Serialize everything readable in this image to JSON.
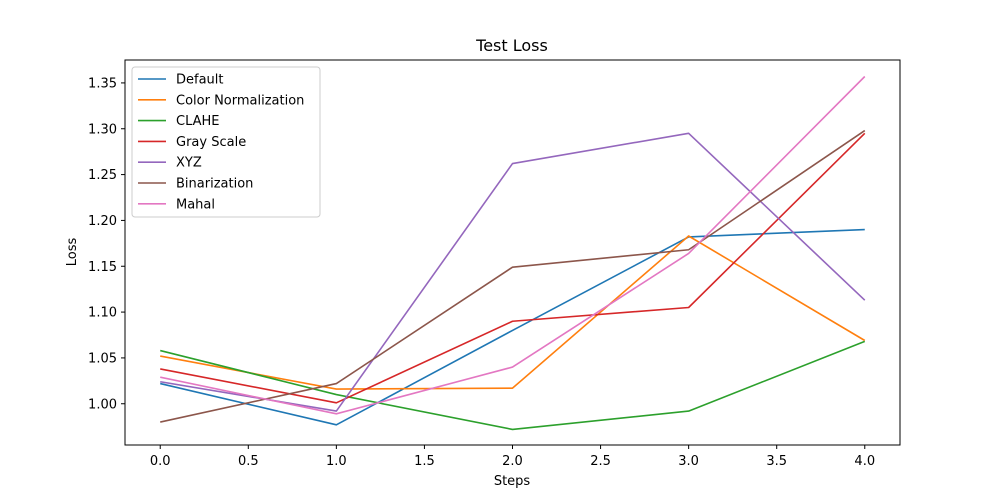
{
  "chart_data": {
    "type": "line",
    "title": "Test Loss",
    "xlabel": "Steps",
    "ylabel": "Loss",
    "x": [
      0,
      1,
      2,
      3,
      4
    ],
    "xlim": [
      -0.2,
      4.2
    ],
    "ylim": [
      0.955,
      1.375
    ],
    "xticks": [
      "0.0",
      "0.5",
      "1.0",
      "1.5",
      "2.0",
      "2.5",
      "3.0",
      "3.5",
      "4.0"
    ],
    "yticks": [
      "1.00",
      "1.05",
      "1.10",
      "1.15",
      "1.20",
      "1.25",
      "1.30",
      "1.35"
    ],
    "grid": false,
    "legend_position": "top-left",
    "series": [
      {
        "name": "Default",
        "color": "#1f77b4",
        "values": [
          1.022,
          0.977,
          1.08,
          1.182,
          1.19
        ]
      },
      {
        "name": "Color Normalization",
        "color": "#ff7f0e",
        "values": [
          1.052,
          1.016,
          1.017,
          1.183,
          1.069
        ]
      },
      {
        "name": "CLAHE",
        "color": "#2ca02c",
        "values": [
          1.058,
          1.01,
          0.972,
          0.992,
          1.068
        ]
      },
      {
        "name": "Gray Scale",
        "color": "#d62728",
        "values": [
          1.038,
          1.001,
          1.09,
          1.105,
          1.295
        ]
      },
      {
        "name": "XYZ",
        "color": "#9467bd",
        "values": [
          1.024,
          0.992,
          1.262,
          1.295,
          1.113
        ]
      },
      {
        "name": "Binarization",
        "color": "#8c564b",
        "values": [
          0.98,
          1.022,
          1.149,
          1.168,
          1.298
        ]
      },
      {
        "name": "Mahal",
        "color": "#e377c2",
        "values": [
          1.029,
          0.989,
          1.04,
          1.164,
          1.357
        ]
      }
    ]
  }
}
